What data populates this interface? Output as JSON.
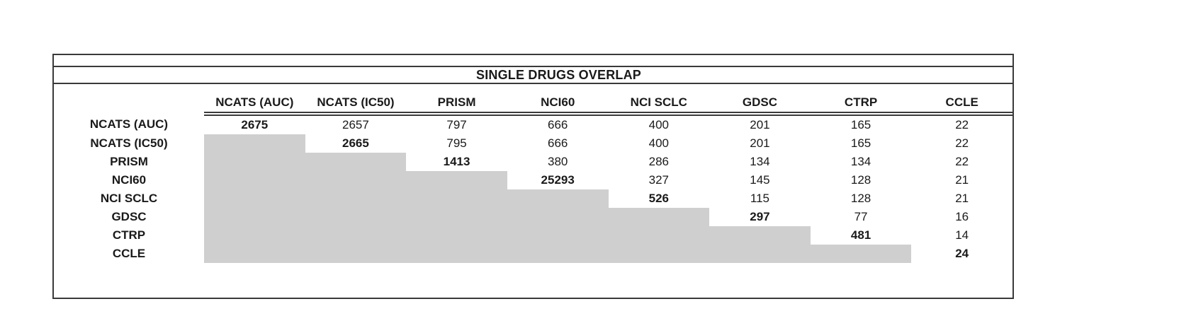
{
  "colors": {
    "lower_triangle_fill": "#d0cfcf",
    "border": "#3a3a3a",
    "text": "#1a1a1a",
    "background": "#ffffff"
  },
  "chart_data": {
    "type": "table",
    "title": "SINGLE DRUGS OVERLAP",
    "columns": [
      "NCATS (AUC)",
      "NCATS (IC50)",
      "PRISM",
      "NCI60",
      "NCI SCLC",
      "GDSC",
      "CTRP",
      "CCLE"
    ],
    "rows": [
      "NCATS (AUC)",
      "NCATS (IC50)",
      "PRISM",
      "NCI60",
      "NCI SCLC",
      "GDSC",
      "CTRP",
      "CCLE"
    ],
    "matrix": [
      [
        2675,
        2657,
        797,
        666,
        400,
        201,
        165,
        22
      ],
      [
        null,
        2665,
        795,
        666,
        400,
        201,
        165,
        22
      ],
      [
        null,
        null,
        1413,
        380,
        286,
        134,
        134,
        22
      ],
      [
        null,
        null,
        null,
        25293,
        327,
        145,
        128,
        21
      ],
      [
        null,
        null,
        null,
        null,
        526,
        115,
        128,
        21
      ],
      [
        null,
        null,
        null,
        null,
        null,
        297,
        77,
        16
      ],
      [
        null,
        null,
        null,
        null,
        null,
        null,
        481,
        14
      ],
      [
        null,
        null,
        null,
        null,
        null,
        null,
        null,
        24
      ]
    ],
    "diagonal_values": [
      2675,
      2665,
      1413,
      25293,
      526,
      297,
      481,
      24
    ],
    "layout": {
      "diagonal_bold": true,
      "lower_triangle": "filled gray, no values",
      "header_rule": "double line under column headers",
      "grid": "off"
    }
  }
}
